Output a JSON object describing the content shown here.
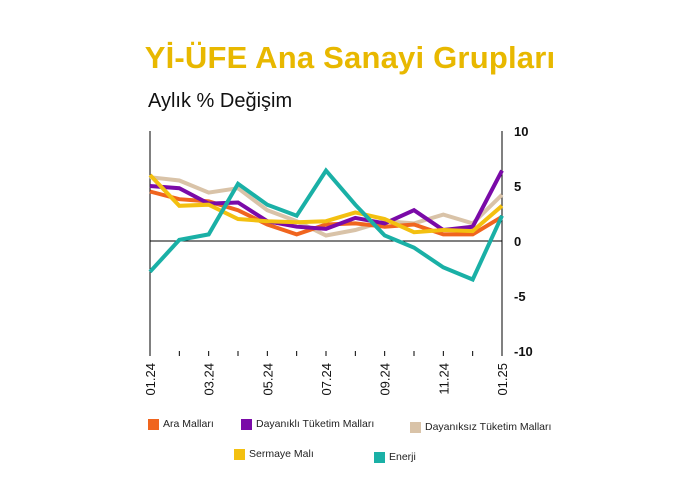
{
  "header": {
    "title": "Yİ-ÜFE Ana Sanayi Grupları",
    "subtitle": "Aylık % Değişim"
  },
  "colors": {
    "title": "#e8b800"
  },
  "chart_data": {
    "type": "line",
    "title": "Yİ-ÜFE Ana Sanayi Grupları",
    "subtitle": "Aylık % Değişim",
    "xlabel": "",
    "ylabel": "",
    "ylim": [
      -10,
      10
    ],
    "yticks": [
      10,
      5,
      0,
      -5,
      -10
    ],
    "y_axis_side": "right",
    "grid": false,
    "legend_position": "bottom",
    "x": [
      "01.24",
      "02.24",
      "03.24",
      "04.24",
      "05.24",
      "06.24",
      "07.24",
      "08.24",
      "09.24",
      "10.24",
      "11.24",
      "12.24",
      "01.25"
    ],
    "x_tick_labels": [
      "01.24",
      "03.24",
      "05.24",
      "07.24",
      "09.24",
      "11.24",
      "01.25"
    ],
    "series": [
      {
        "name": "Dayanıksız Tüketim Malları",
        "color": "#d9c3a8",
        "values": [
          5.8,
          5.5,
          4.4,
          4.8,
          2.8,
          1.8,
          0.5,
          1.0,
          1.8,
          1.6,
          2.4,
          1.6,
          4.2
        ]
      },
      {
        "name": "Ara Malları",
        "color": "#f0651e",
        "values": [
          4.5,
          3.8,
          3.6,
          2.8,
          1.5,
          0.6,
          1.5,
          1.6,
          1.3,
          1.5,
          0.6,
          0.6,
          2.2
        ]
      },
      {
        "name": "Dayanıklı Tüketim Malları",
        "color": "#7a0aa8",
        "values": [
          5.0,
          4.8,
          3.4,
          3.5,
          1.8,
          1.3,
          1.1,
          2.1,
          1.6,
          2.8,
          1.0,
          1.3,
          6.4
        ]
      },
      {
        "name": "Sermaye Malı",
        "color": "#f3c010",
        "values": [
          6.0,
          3.2,
          3.3,
          2.0,
          1.8,
          1.7,
          1.8,
          2.6,
          2.0,
          0.8,
          1.0,
          0.9,
          3.2
        ]
      },
      {
        "name": "Enerji",
        "color": "#1ab0a6",
        "values": [
          -2.8,
          0.1,
          0.6,
          5.2,
          3.3,
          2.3,
          6.4,
          3.3,
          0.5,
          -0.6,
          -2.4,
          -3.5,
          2.3
        ]
      }
    ]
  },
  "legend": [
    {
      "label": "Ara Malları",
      "color": "#f0651e"
    },
    {
      "label": "Dayanıklı Tüketim Malları",
      "color": "#7a0aa8"
    },
    {
      "label": "Dayanıksız Tüketim Malları",
      "color": "#d9c3a8"
    },
    {
      "label": "Sermaye Malı",
      "color": "#f3c010"
    },
    {
      "label": "Enerji",
      "color": "#1ab0a6"
    }
  ]
}
